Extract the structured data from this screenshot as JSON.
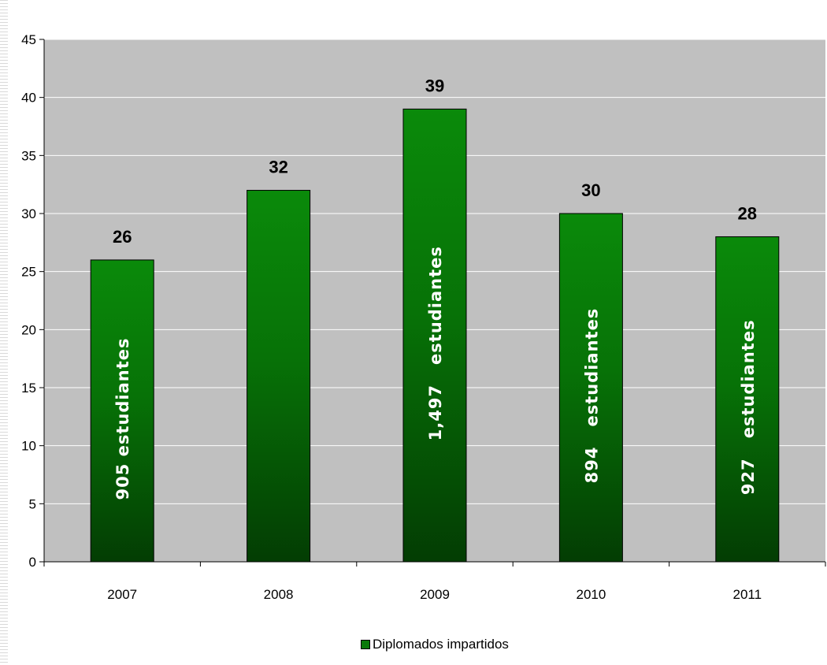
{
  "chart_data": {
    "type": "bar",
    "categories": [
      "2007",
      "2008",
      "2009",
      "2010",
      "2011"
    ],
    "values": [
      26,
      32,
      39,
      30,
      28
    ],
    "inner_labels": [
      "905 estudiantes",
      "",
      "1,497   estudiantes",
      "894   estudiantes",
      "927   estudiantes"
    ],
    "series": [
      {
        "name": "Diplomados impartidos",
        "values": [
          26,
          32,
          39,
          30,
          28
        ]
      }
    ],
    "ylim": [
      0,
      45
    ],
    "yticks": [
      0,
      5,
      10,
      15,
      20,
      25,
      30,
      35,
      40,
      45
    ],
    "grid": true,
    "legend": "bottom-center",
    "colors": {
      "plot_bg": "#c0c0c0",
      "bar_top": "#0a8a0a",
      "bar_bottom": "#033d03",
      "grid": "#ffffff"
    }
  }
}
